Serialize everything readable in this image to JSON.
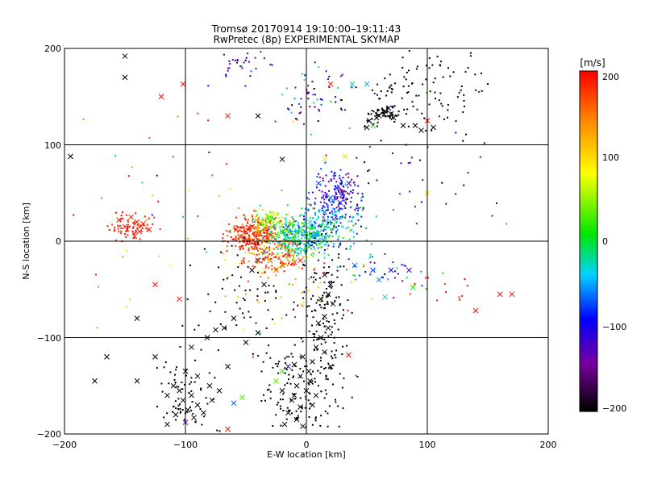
{
  "chart_data": {
    "type": "scatter",
    "title": "Tromsø 20170914 19:10:00–19:11:43",
    "subtitle": "RwPretec (8p) EXPERIMENTAL SKYMAP",
    "xlabel": "E-W location [km]",
    "ylabel": "N-S location [km]",
    "xlim": [
      -200,
      200
    ],
    "ylim": [
      -200,
      200
    ],
    "x_ticks": [
      "−200",
      "−100",
      "0",
      "100",
      "200"
    ],
    "y_ticks": [
      "−200",
      "−100",
      "0",
      "100",
      "200"
    ],
    "grid": true,
    "colorbar": {
      "label": "[m/s]",
      "range": [
        -200,
        200
      ],
      "ticks": [
        "200",
        "100",
        "0",
        "−100",
        "−200"
      ],
      "colormap": "rainbow: black (-200) → purple → blue → cyan → green (0) → yellow → orange → red (200)"
    },
    "marker_legend": "dots = small points, x = crosses",
    "points": [
      {
        "x": -140,
        "y": 20,
        "v": 190,
        "m": "x"
      },
      {
        "x": -135,
        "y": 18,
        "v": 195,
        "m": "x"
      },
      {
        "x": -145,
        "y": 25,
        "v": 185,
        "m": "x"
      },
      {
        "x": -150,
        "y": 15,
        "v": 200,
        "m": "x"
      },
      {
        "x": -138,
        "y": 10,
        "v": 190,
        "m": "x"
      },
      {
        "x": -130,
        "y": 12,
        "v": 195,
        "m": "x"
      },
      {
        "x": -142,
        "y": 5,
        "v": 180,
        "m": "x"
      },
      {
        "x": -155,
        "y": 22,
        "v": 190,
        "m": "x"
      },
      {
        "x": -120,
        "y": 150,
        "v": 200,
        "m": "x"
      },
      {
        "x": -102,
        "y": 163,
        "v": 195,
        "m": "x"
      },
      {
        "x": -65,
        "y": 130,
        "v": 190,
        "m": "x"
      },
      {
        "x": -125,
        "y": -45,
        "v": 195,
        "m": "x"
      },
      {
        "x": -105,
        "y": -60,
        "v": 190,
        "m": "x"
      },
      {
        "x": 160,
        "y": -55,
        "v": 195,
        "m": "x"
      },
      {
        "x": 170,
        "y": -55,
        "v": 190,
        "m": "x"
      },
      {
        "x": 140,
        "y": -72,
        "v": 195,
        "m": "x"
      },
      {
        "x": -50,
        "y": 10,
        "v": 200,
        "m": "x"
      },
      {
        "x": -45,
        "y": 15,
        "v": 195,
        "m": "x"
      },
      {
        "x": -55,
        "y": 5,
        "v": 190,
        "m": "x"
      },
      {
        "x": -40,
        "y": 8,
        "v": 185,
        "m": "x"
      },
      {
        "x": -48,
        "y": 0,
        "v": 200,
        "m": "x"
      },
      {
        "x": -58,
        "y": 12,
        "v": 195,
        "m": "x"
      },
      {
        "x": -42,
        "y": -5,
        "v": 190,
        "m": "x"
      },
      {
        "x": -35,
        "y": -10,
        "v": 180,
        "m": "x"
      },
      {
        "x": -30,
        "y": -20,
        "v": 170,
        "m": "x"
      },
      {
        "x": -20,
        "y": -25,
        "v": 200,
        "m": "x"
      },
      {
        "x": -10,
        "y": -22,
        "v": 195,
        "m": "x"
      },
      {
        "x": -15,
        "y": -15,
        "v": 190,
        "m": "x"
      },
      {
        "x": -5,
        "y": -20,
        "v": 185,
        "m": "x"
      },
      {
        "x": -25,
        "y": -30,
        "v": 160,
        "m": "x"
      },
      {
        "x": -38,
        "y": 20,
        "v": 60,
        "m": "x"
      },
      {
        "x": -30,
        "y": 25,
        "v": 40,
        "m": "x"
      },
      {
        "x": -35,
        "y": 22,
        "v": 20,
        "m": "x"
      },
      {
        "x": -28,
        "y": 15,
        "v": 30,
        "m": "x"
      },
      {
        "x": -20,
        "y": 10,
        "v": 0,
        "m": "x"
      },
      {
        "x": -10,
        "y": 5,
        "v": -10,
        "m": "x"
      },
      {
        "x": -5,
        "y": 10,
        "v": -20,
        "m": "x"
      },
      {
        "x": 0,
        "y": 5,
        "v": -30,
        "m": "x"
      },
      {
        "x": 5,
        "y": 15,
        "v": -40,
        "m": "x"
      },
      {
        "x": 10,
        "y": 8,
        "v": -50,
        "m": "x"
      },
      {
        "x": -8,
        "y": 0,
        "v": -25,
        "m": "x"
      },
      {
        "x": 0,
        "y": -5,
        "v": -15,
        "m": "x"
      },
      {
        "x": -12,
        "y": 18,
        "v": 10,
        "m": "x"
      },
      {
        "x": 3,
        "y": 20,
        "v": -35,
        "m": "x"
      },
      {
        "x": 15,
        "y": 30,
        "v": -60,
        "m": "x"
      },
      {
        "x": 20,
        "y": 45,
        "v": -70,
        "m": "x"
      },
      {
        "x": 25,
        "y": 55,
        "v": -100,
        "m": "x"
      },
      {
        "x": 30,
        "y": 50,
        "v": -110,
        "m": "x"
      },
      {
        "x": 35,
        "y": 60,
        "v": -120,
        "m": "x"
      },
      {
        "x": 28,
        "y": 40,
        "v": -90,
        "m": "x"
      },
      {
        "x": 10,
        "y": 60,
        "v": -80,
        "m": "x"
      },
      {
        "x": 40,
        "y": -25,
        "v": -60,
        "m": "x"
      },
      {
        "x": 55,
        "y": -30,
        "v": -80,
        "m": "x"
      },
      {
        "x": 60,
        "y": -40,
        "v": -60,
        "m": "x"
      },
      {
        "x": 70,
        "y": -30,
        "v": -100,
        "m": "x"
      },
      {
        "x": 85,
        "y": -30,
        "v": -120,
        "m": "x"
      },
      {
        "x": 88,
        "y": -48,
        "v": 20,
        "m": "x"
      },
      {
        "x": 65,
        "y": -58,
        "v": -30,
        "m": "x"
      },
      {
        "x": 50,
        "y": 163,
        "v": -50,
        "m": "x"
      },
      {
        "x": 38,
        "y": 163,
        "v": -20,
        "m": "x"
      },
      {
        "x": 55,
        "y": 120,
        "v": 10,
        "m": "x"
      },
      {
        "x": 20,
        "y": 163,
        "v": 190,
        "m": "x"
      },
      {
        "x": 100,
        "y": 125,
        "v": 195,
        "m": "x"
      },
      {
        "x": 15,
        "y": 85,
        "v": 90,
        "m": "x"
      },
      {
        "x": 32,
        "y": 88,
        "v": 100,
        "m": "x"
      },
      {
        "x": 100,
        "y": 50,
        "v": 100,
        "m": "x"
      },
      {
        "x": -53,
        "y": -162,
        "v": 30,
        "m": "x"
      },
      {
        "x": -60,
        "y": -168,
        "v": -70,
        "m": "x"
      },
      {
        "x": -65,
        "y": -195,
        "v": 190,
        "m": "x"
      },
      {
        "x": -100,
        "y": -188,
        "v": -140,
        "m": "x"
      },
      {
        "x": -20,
        "y": -135,
        "v": 20,
        "m": "x"
      },
      {
        "x": -25,
        "y": -145,
        "v": 30,
        "m": "x"
      },
      {
        "x": -15,
        "y": -130,
        "v": -120,
        "m": "x"
      },
      {
        "x": 35,
        "y": -118,
        "v": 190,
        "m": "x"
      },
      {
        "x": -10,
        "y": -160,
        "v": -200,
        "m": "x"
      },
      {
        "x": -150,
        "y": 192,
        "v": -200,
        "m": "x"
      },
      {
        "x": -150,
        "y": 170,
        "v": -200,
        "m": "x"
      },
      {
        "x": -40,
        "y": 130,
        "v": -200,
        "m": "x"
      },
      {
        "x": -20,
        "y": 85,
        "v": -200,
        "m": "x"
      },
      {
        "x": -40,
        "y": -20,
        "v": -200,
        "m": "x"
      },
      {
        "x": -45,
        "y": -30,
        "v": -200,
        "m": "x"
      },
      {
        "x": -35,
        "y": -45,
        "v": -200,
        "m": "x"
      },
      {
        "x": -60,
        "y": -80,
        "v": -200,
        "m": "x"
      },
      {
        "x": -68,
        "y": -90,
        "v": -200,
        "m": "x"
      },
      {
        "x": -75,
        "y": -92,
        "v": -200,
        "m": "x"
      },
      {
        "x": -82,
        "y": -100,
        "v": -200,
        "m": "x"
      },
      {
        "x": -95,
        "y": -110,
        "v": -200,
        "m": "x"
      },
      {
        "x": -125,
        "y": -120,
        "v": -200,
        "m": "x"
      },
      {
        "x": -140,
        "y": -80,
        "v": -200,
        "m": "x"
      },
      {
        "x": -140,
        "y": -145,
        "v": -200,
        "m": "x"
      },
      {
        "x": -165,
        "y": -120,
        "v": -200,
        "m": "x"
      },
      {
        "x": -175,
        "y": -145,
        "v": -200,
        "m": "x"
      },
      {
        "x": -195,
        "y": 88,
        "v": -200,
        "m": "x"
      },
      {
        "x": 15,
        "y": -35,
        "v": -200,
        "m": "x"
      },
      {
        "x": 20,
        "y": -45,
        "v": -200,
        "m": "x"
      },
      {
        "x": 18,
        "y": -55,
        "v": -200,
        "m": "x"
      },
      {
        "x": 12,
        "y": -60,
        "v": -200,
        "m": "x"
      },
      {
        "x": 22,
        "y": -65,
        "v": -200,
        "m": "x"
      },
      {
        "x": 15,
        "y": -78,
        "v": -200,
        "m": "x"
      },
      {
        "x": 10,
        "y": -85,
        "v": -200,
        "m": "x"
      },
      {
        "x": 18,
        "y": -90,
        "v": -200,
        "m": "x"
      },
      {
        "x": 12,
        "y": -100,
        "v": -200,
        "m": "x"
      },
      {
        "x": 8,
        "y": -110,
        "v": -200,
        "m": "x"
      },
      {
        "x": 15,
        "y": -115,
        "v": -200,
        "m": "x"
      },
      {
        "x": 5,
        "y": -125,
        "v": -200,
        "m": "x"
      },
      {
        "x": -3,
        "y": -120,
        "v": -200,
        "m": "x"
      },
      {
        "x": 2,
        "y": -135,
        "v": -200,
        "m": "x"
      },
      {
        "x": -5,
        "y": -140,
        "v": -200,
        "m": "x"
      },
      {
        "x": 3,
        "y": -145,
        "v": -200,
        "m": "x"
      },
      {
        "x": -8,
        "y": -150,
        "v": -200,
        "m": "x"
      },
      {
        "x": 0,
        "y": -155,
        "v": -200,
        "m": "x"
      },
      {
        "x": -12,
        "y": -165,
        "v": -200,
        "m": "x"
      },
      {
        "x": -5,
        "y": -172,
        "v": -200,
        "m": "x"
      },
      {
        "x": -15,
        "y": -178,
        "v": -200,
        "m": "x"
      },
      {
        "x": -8,
        "y": -185,
        "v": -200,
        "m": "x"
      },
      {
        "x": -3,
        "y": -192,
        "v": -200,
        "m": "x"
      },
      {
        "x": -18,
        "y": -190,
        "v": -200,
        "m": "x"
      },
      {
        "x": 5,
        "y": -170,
        "v": -200,
        "m": "x"
      },
      {
        "x": 8,
        "y": -160,
        "v": -200,
        "m": "x"
      },
      {
        "x": -20,
        "y": -155,
        "v": -200,
        "m": "x"
      },
      {
        "x": -10,
        "y": -128,
        "v": -200,
        "m": "x"
      },
      {
        "x": 20,
        "y": -130,
        "v": -200,
        "m": "x"
      },
      {
        "x": -100,
        "y": -135,
        "v": -200,
        "m": "x"
      },
      {
        "x": -110,
        "y": -150,
        "v": -200,
        "m": "x"
      },
      {
        "x": -105,
        "y": -155,
        "v": -200,
        "m": "x"
      },
      {
        "x": -95,
        "y": -160,
        "v": -200,
        "m": "x"
      },
      {
        "x": -102,
        "y": -165,
        "v": -200,
        "m": "x"
      },
      {
        "x": -90,
        "y": -170,
        "v": -200,
        "m": "x"
      },
      {
        "x": -98,
        "y": -175,
        "v": -200,
        "m": "x"
      },
      {
        "x": -108,
        "y": -180,
        "v": -200,
        "m": "x"
      },
      {
        "x": -93,
        "y": -183,
        "v": -200,
        "m": "x"
      },
      {
        "x": -85,
        "y": -178,
        "v": -200,
        "m": "x"
      },
      {
        "x": -78,
        "y": -165,
        "v": -200,
        "m": "x"
      },
      {
        "x": -80,
        "y": -150,
        "v": -200,
        "m": "x"
      },
      {
        "x": -90,
        "y": -140,
        "v": -200,
        "m": "x"
      },
      {
        "x": -72,
        "y": -155,
        "v": -200,
        "m": "x"
      },
      {
        "x": -115,
        "y": -160,
        "v": -200,
        "m": "x"
      },
      {
        "x": -115,
        "y": -190,
        "v": -200,
        "m": "x"
      },
      {
        "x": -65,
        "y": -130,
        "v": -200,
        "m": "x"
      },
      {
        "x": 60,
        "y": 130,
        "v": -200,
        "m": "x"
      },
      {
        "x": 65,
        "y": 135,
        "v": -200,
        "m": "x"
      },
      {
        "x": 70,
        "y": 132,
        "v": -200,
        "m": "x"
      },
      {
        "x": 58,
        "y": 128,
        "v": -200,
        "m": "x"
      },
      {
        "x": 68,
        "y": 138,
        "v": -200,
        "m": "x"
      },
      {
        "x": 52,
        "y": 125,
        "v": -200,
        "m": "x"
      },
      {
        "x": 72,
        "y": 128,
        "v": -200,
        "m": "x"
      },
      {
        "x": 50,
        "y": 118,
        "v": -200,
        "m": "x"
      },
      {
        "x": 80,
        "y": 120,
        "v": -200,
        "m": "x"
      },
      {
        "x": 90,
        "y": 120,
        "v": -200,
        "m": "x"
      },
      {
        "x": 95,
        "y": 115,
        "v": -200,
        "m": "x"
      },
      {
        "x": 105,
        "y": 118,
        "v": -200,
        "m": "x"
      },
      {
        "x": -50,
        "y": -105,
        "v": -200,
        "m": "x"
      },
      {
        "x": -40,
        "y": -95,
        "v": -200,
        "m": "x"
      }
    ]
  }
}
